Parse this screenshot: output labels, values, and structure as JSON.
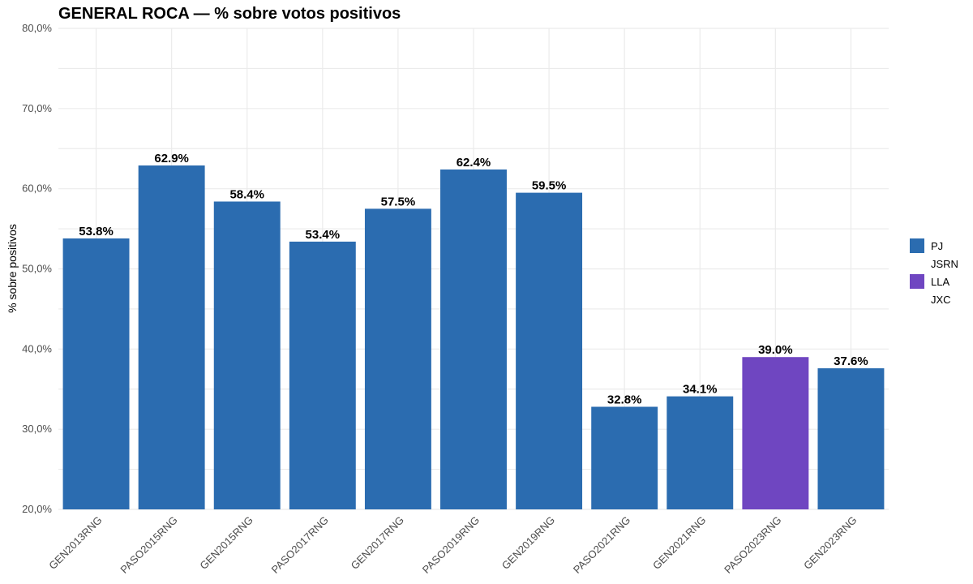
{
  "chart_data": {
    "type": "bar",
    "title": "GENERAL ROCA — % sobre votos positivos",
    "xlabel": "",
    "ylabel": "% sobre positivos",
    "ylim": [
      20,
      80
    ],
    "yticks": [
      20,
      30,
      40,
      50,
      60,
      70,
      80
    ],
    "ytick_labels": [
      "20,0%",
      "30,0%",
      "40,0%",
      "50,0%",
      "60,0%",
      "70,0%",
      "80,0%"
    ],
    "grid": true,
    "legend_position": "right",
    "categories": [
      "GEN2013RNG",
      "PASO2015RNG",
      "GEN2015RNG",
      "PASO2017RNG",
      "GEN2017RNG",
      "PASO2019RNG",
      "GEN2019RNG",
      "PASO2021RNG",
      "GEN2021RNG",
      "PASO2023RNG",
      "GEN2023RNG"
    ],
    "values": [
      53.8,
      62.9,
      58.4,
      53.4,
      57.5,
      62.4,
      59.5,
      32.8,
      34.1,
      39.0,
      37.6
    ],
    "data_labels": [
      "53.8%",
      "62.9%",
      "58.4%",
      "53.4%",
      "57.5%",
      "62.4%",
      "59.5%",
      "32.8%",
      "34.1%",
      "39.0%",
      "37.6%"
    ],
    "bar_party": [
      "PJ",
      "PJ",
      "PJ",
      "PJ",
      "PJ",
      "PJ",
      "PJ",
      "PJ",
      "PJ",
      "LLA",
      "PJ"
    ],
    "legend": [
      {
        "name": "PJ",
        "color": "#2b6cb0",
        "show_swatch": true
      },
      {
        "name": "JSRN",
        "color": "#ffffff",
        "show_swatch": false
      },
      {
        "name": "LLA",
        "color": "#6f46c1",
        "show_swatch": true
      },
      {
        "name": "JXC",
        "color": "#ffffff",
        "show_swatch": false
      }
    ]
  }
}
